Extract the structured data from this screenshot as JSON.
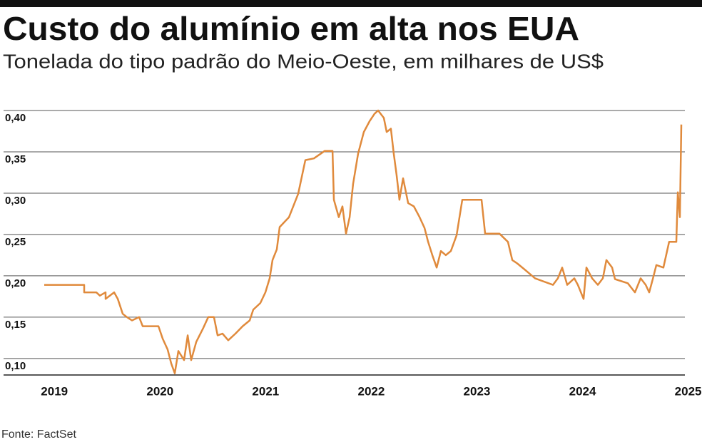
{
  "chart_data": {
    "type": "line",
    "title": "Custo do alumínio em alta nos EUA",
    "subtitle": "Tonelada do tipo padrão do Meio-Oeste, em milhares de US$",
    "source": "Fonte: FactSet",
    "color": "#e08a3c",
    "grid": true,
    "xlim": [
      2018.6,
      2025.05
    ],
    "xticks": [
      2019,
      2020,
      2021,
      2022,
      2023,
      2024,
      2025
    ],
    "ylim": [
      0.08,
      0.4
    ],
    "yticks": [
      {
        "value": 0.1,
        "label": "0,10"
      },
      {
        "value": 0.15,
        "label": "0,15"
      },
      {
        "value": 0.2,
        "label": "0,20"
      },
      {
        "value": 0.25,
        "label": "0,25"
      },
      {
        "value": 0.3,
        "label": "0,30"
      },
      {
        "value": 0.35,
        "label": "0,35"
      },
      {
        "value": 0.4,
        "label": "0,40"
      }
    ],
    "x": [
      2018.985,
      2019.363,
      2019.363,
      2019.478,
      2019.512,
      2019.566,
      2019.566,
      2019.647,
      2019.681,
      2019.728,
      2019.768,
      2019.816,
      2019.883,
      2019.917,
      2020.066,
      2020.106,
      2020.153,
      2020.187,
      2020.221,
      2020.255,
      2020.309,
      2020.343,
      2020.376,
      2020.424,
      2020.491,
      2020.538,
      2020.592,
      2020.626,
      2020.673,
      2020.727,
      2020.795,
      2020.863,
      2020.93,
      2020.964,
      2021.031,
      2021.079,
      2021.119,
      2021.146,
      2021.187,
      2021.214,
      2021.302,
      2021.389,
      2021.457,
      2021.538,
      2021.639,
      2021.714,
      2021.727,
      2021.774,
      2021.808,
      2021.842,
      2021.876,
      2021.909,
      2021.957,
      2022.011,
      2022.065,
      2022.112,
      2022.146,
      2022.2,
      2022.227,
      2022.267,
      2022.294,
      2022.321,
      2022.348,
      2022.382,
      2022.43,
      2022.484,
      2022.538,
      2022.585,
      2022.619,
      2022.659,
      2022.7,
      2022.74,
      2022.787,
      2022.835,
      2022.889,
      2022.943,
      2023.125,
      2023.159,
      2023.294,
      2023.375,
      2023.416,
      2023.463,
      2023.53,
      2023.632,
      2023.801,
      2023.848,
      2023.888,
      2023.936,
      2024.003,
      2024.037,
      2024.091,
      2024.118,
      2024.172,
      2024.226,
      2024.273,
      2024.307,
      2024.361,
      2024.388,
      2024.51,
      2024.577,
      2024.631,
      2024.679,
      2024.712,
      2024.746,
      2024.78,
      2024.847,
      2024.901,
      2024.969,
      2024.983,
      2025.003,
      2025.016
    ],
    "values": [
      0.189,
      0.189,
      0.18,
      0.18,
      0.176,
      0.18,
      0.172,
      0.18,
      0.172,
      0.154,
      0.15,
      0.146,
      0.15,
      0.139,
      0.139,
      0.124,
      0.111,
      0.094,
      0.082,
      0.109,
      0.098,
      0.128,
      0.098,
      0.12,
      0.137,
      0.15,
      0.15,
      0.128,
      0.13,
      0.122,
      0.13,
      0.139,
      0.146,
      0.159,
      0.167,
      0.18,
      0.197,
      0.219,
      0.232,
      0.259,
      0.271,
      0.299,
      0.34,
      0.342,
      0.351,
      0.351,
      0.292,
      0.271,
      0.284,
      0.251,
      0.271,
      0.311,
      0.348,
      0.374,
      0.387,
      0.396,
      0.4,
      0.391,
      0.374,
      0.378,
      0.348,
      0.322,
      0.292,
      0.318,
      0.288,
      0.284,
      0.271,
      0.258,
      0.241,
      0.225,
      0.21,
      0.23,
      0.225,
      0.23,
      0.249,
      0.292,
      0.292,
      0.251,
      0.251,
      0.241,
      0.219,
      0.215,
      0.208,
      0.197,
      0.189,
      0.197,
      0.21,
      0.189,
      0.197,
      0.189,
      0.172,
      0.21,
      0.197,
      0.189,
      0.197,
      0.219,
      0.21,
      0.196,
      0.191,
      0.18,
      0.197,
      0.189,
      0.18,
      0.196,
      0.213,
      0.21,
      0.241,
      0.241,
      0.301,
      0.271,
      0.383
    ]
  }
}
